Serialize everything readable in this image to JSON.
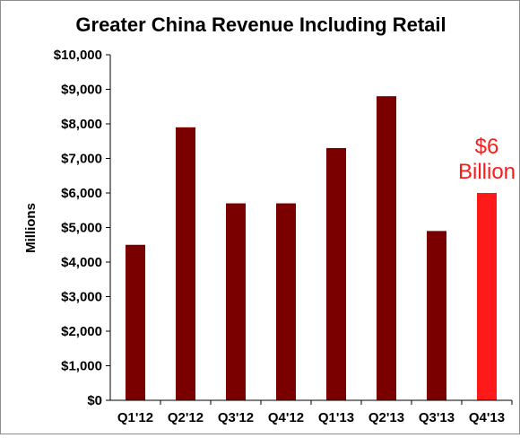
{
  "chart_data": {
    "type": "bar",
    "title": "Greater China Revenue Including Retail",
    "xlabel": "",
    "ylabel": "Millions",
    "categories": [
      "Q1'12",
      "Q2'12",
      "Q3'12",
      "Q4'12",
      "Q1'13",
      "Q2'13",
      "Q3'13",
      "Q4'13"
    ],
    "values": [
      4500,
      7900,
      5700,
      5700,
      7300,
      8800,
      4900,
      6000
    ],
    "ylim": [
      0,
      10000
    ],
    "yticks": [
      0,
      1000,
      2000,
      3000,
      4000,
      5000,
      6000,
      7000,
      8000,
      9000,
      10000
    ],
    "ytick_labels": [
      "$0",
      "$1,000",
      "$2,000",
      "$3,000",
      "$4,000",
      "$5,000",
      "$6,000",
      "$7,000",
      "$8,000",
      "$9,000",
      "$10,000"
    ],
    "grid": false,
    "legend": "none",
    "colors": {
      "bar": "#7a0000",
      "highlight_bar": "#ff1a1a",
      "annotation": "#ff1a1a"
    },
    "highlight_index": 7,
    "annotation": {
      "lines": [
        "$6",
        "Billion"
      ],
      "category": "Q4'13"
    }
  }
}
